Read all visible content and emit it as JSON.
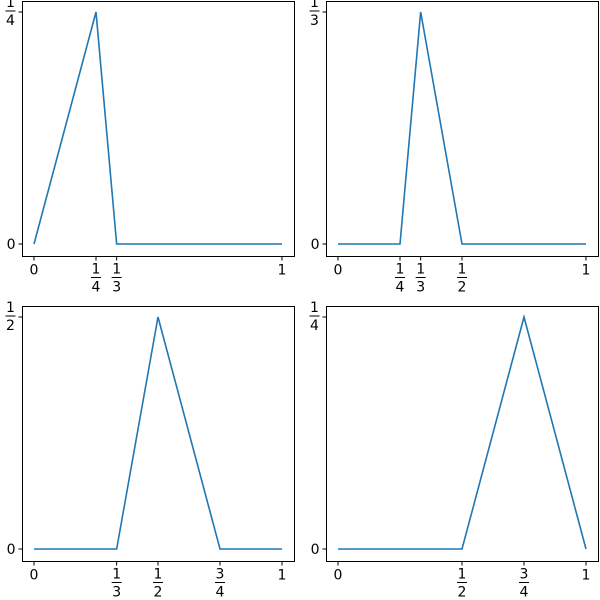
{
  "line_color": "#1f77b4",
  "chart_data": [
    {
      "type": "line",
      "xlim": [
        0,
        1
      ],
      "ylim": [
        0,
        0.25
      ],
      "x": [
        0,
        0.25,
        0.3333,
        1
      ],
      "y": [
        0,
        0.25,
        0,
        0
      ],
      "xticks": [
        {
          "value": 0,
          "label": "0"
        },
        {
          "value": 0.25,
          "num": "1",
          "den": "4"
        },
        {
          "value": 0.3333,
          "num": "1",
          "den": "3"
        },
        {
          "value": 1,
          "label": "1"
        }
      ],
      "yticks": [
        {
          "value": 0,
          "label": "0"
        },
        {
          "value": 0.25,
          "num": "1",
          "den": "4"
        }
      ]
    },
    {
      "type": "line",
      "xlim": [
        0,
        1
      ],
      "ylim": [
        0,
        0.3333
      ],
      "x": [
        0,
        0.25,
        0.3333,
        0.5,
        1
      ],
      "y": [
        0,
        0,
        0.3333,
        0,
        0
      ],
      "xticks": [
        {
          "value": 0,
          "label": "0"
        },
        {
          "value": 0.25,
          "num": "1",
          "den": "4"
        },
        {
          "value": 0.3333,
          "num": "1",
          "den": "3"
        },
        {
          "value": 0.5,
          "num": "1",
          "den": "2"
        },
        {
          "value": 1,
          "label": "1"
        }
      ],
      "yticks": [
        {
          "value": 0,
          "label": "0"
        },
        {
          "value": 0.3333,
          "num": "1",
          "den": "3"
        }
      ]
    },
    {
      "type": "line",
      "xlim": [
        0,
        1
      ],
      "ylim": [
        0,
        0.5
      ],
      "x": [
        0,
        0.3333,
        0.5,
        0.75,
        1
      ],
      "y": [
        0,
        0,
        0.5,
        0,
        0
      ],
      "xticks": [
        {
          "value": 0,
          "label": "0"
        },
        {
          "value": 0.3333,
          "num": "1",
          "den": "3"
        },
        {
          "value": 0.5,
          "num": "1",
          "den": "2"
        },
        {
          "value": 0.75,
          "num": "3",
          "den": "4"
        },
        {
          "value": 1,
          "label": "1"
        }
      ],
      "yticks": [
        {
          "value": 0,
          "label": "0"
        },
        {
          "value": 0.5,
          "num": "1",
          "den": "2"
        }
      ]
    },
    {
      "type": "line",
      "xlim": [
        0,
        1
      ],
      "ylim": [
        0,
        0.25
      ],
      "x": [
        0,
        0.5,
        0.75,
        1
      ],
      "y": [
        0,
        0,
        0.25,
        0
      ],
      "xticks": [
        {
          "value": 0,
          "label": "0"
        },
        {
          "value": 0.5,
          "num": "1",
          "den": "2"
        },
        {
          "value": 0.75,
          "num": "3",
          "den": "4"
        },
        {
          "value": 1,
          "label": "1"
        }
      ],
      "yticks": [
        {
          "value": 0,
          "label": "0"
        },
        {
          "value": 0.25,
          "num": "1",
          "den": "4"
        }
      ]
    }
  ]
}
